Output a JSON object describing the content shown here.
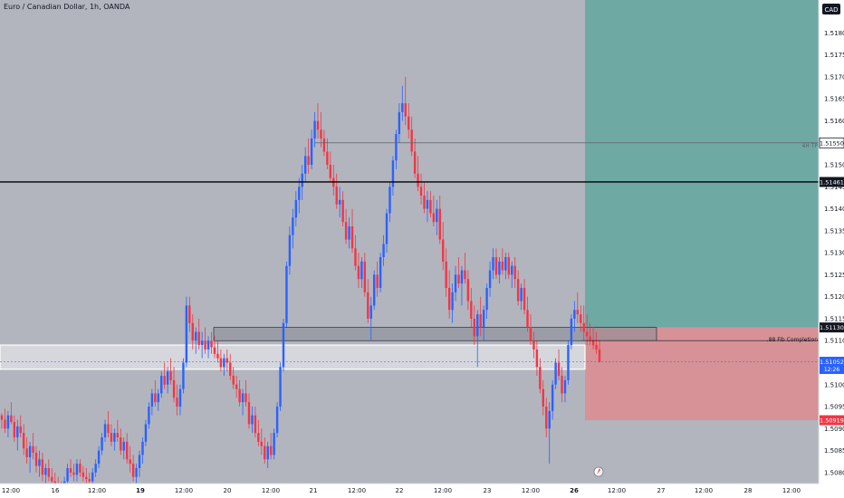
{
  "header": {
    "symbol_title": "Euro / Canadian Dollar, 1h, OANDA"
  },
  "currency_badge": "CAD",
  "colors": {
    "background": "#b2b5be",
    "bull": "#2962ff",
    "bear": "#f23645",
    "target_zone": "#6fa9a4",
    "stop_zone": "#d69296",
    "axis_bg": "#ffffff",
    "price_tag_dark": "#131722",
    "price_tag_blue": "#2962ff",
    "price_tag_red": "#f23645"
  },
  "annotations": {
    "tp_label": "4H TP",
    "fib_label": ".88 Fib Completion",
    "wick_icon": "time-marker-icon"
  },
  "price_tags": {
    "tp": "1.51550",
    "black_line": "1.51461",
    "entry": "1.51130",
    "current_price": "1.51052",
    "countdown": "12:26",
    "stop": "1.50919"
  },
  "chart_data": {
    "type": "candlestick",
    "title": "Euro / Canadian Dollar, 1h, OANDA",
    "ylim": [
      1.50775,
      1.51875
    ],
    "y_ticks": [
      "1.51800",
      "1.51750",
      "1.51700",
      "1.51650",
      "1.51600",
      "1.51550",
      "1.51500",
      "1.51450",
      "1.51400",
      "1.51350",
      "1.51300",
      "1.51250",
      "1.51200",
      "1.51150",
      "1.51100",
      "1.51050",
      "1.51000",
      "1.50950",
      "1.50900",
      "1.50850",
      "1.50800"
    ],
    "x_ticks": [
      {
        "label": "12:00",
        "bold": false
      },
      {
        "label": "16",
        "bold": false
      },
      {
        "label": "12:00",
        "bold": false
      },
      {
        "label": "19",
        "bold": true
      },
      {
        "label": "12:00",
        "bold": false
      },
      {
        "label": "20",
        "bold": false
      },
      {
        "label": "12:00",
        "bold": false
      },
      {
        "label": "21",
        "bold": false
      },
      {
        "label": "12:00",
        "bold": false
      },
      {
        "label": "22",
        "bold": false
      },
      {
        "label": "12:00",
        "bold": false
      },
      {
        "label": "23",
        "bold": false
      },
      {
        "label": "12:00",
        "bold": false
      },
      {
        "label": "26",
        "bold": true
      },
      {
        "label": "12:00",
        "bold": false
      },
      {
        "label": "27",
        "bold": false
      },
      {
        "label": "12:00",
        "bold": false
      },
      {
        "label": "28",
        "bold": false
      },
      {
        "label": "12:00",
        "bold": false
      }
    ],
    "levels": {
      "horizontal_black": 1.51461,
      "tp_line": 1.5155,
      "entry": 1.5113,
      "stop": 1.50919,
      "fib": 1.511,
      "current": 1.51052
    },
    "zones": {
      "demand_zone": [
        1.511,
        1.5113
      ],
      "white_zone": [
        1.51035,
        1.5109
      ]
    },
    "candles": [
      [
        1.5093,
        1.50935,
        1.509,
        1.5092
      ],
      [
        1.5092,
        1.50945,
        1.5089,
        1.509
      ],
      [
        1.509,
        1.5094,
        1.5088,
        1.5093
      ],
      [
        1.5093,
        1.5096,
        1.5091,
        1.50915
      ],
      [
        1.50915,
        1.5093,
        1.5087,
        1.5088
      ],
      [
        1.5088,
        1.5092,
        1.5085,
        1.50905
      ],
      [
        1.50905,
        1.5093,
        1.5088,
        1.5089
      ],
      [
        1.5089,
        1.5091,
        1.5084,
        1.50855
      ],
      [
        1.50855,
        1.5088,
        1.5082,
        1.50835
      ],
      [
        1.50835,
        1.5087,
        1.508,
        1.5086
      ],
      [
        1.5086,
        1.5089,
        1.5083,
        1.50845
      ],
      [
        1.50845,
        1.5086,
        1.508,
        1.50815
      ],
      [
        1.50815,
        1.5085,
        1.5079,
        1.5083
      ],
      [
        1.5083,
        1.50845,
        1.5078,
        1.50795
      ],
      [
        1.50795,
        1.5082,
        1.5077,
        1.5081
      ],
      [
        1.5081,
        1.5083,
        1.5078,
        1.5079
      ],
      [
        1.5079,
        1.5081,
        1.5076,
        1.5078
      ],
      [
        1.5078,
        1.508,
        1.5075,
        1.5077
      ],
      [
        1.5077,
        1.5079,
        1.5074,
        1.5076
      ],
      [
        1.5076,
        1.5078,
        1.5073,
        1.5075
      ],
      [
        1.5075,
        1.5079,
        1.5074,
        1.5078
      ],
      [
        1.5078,
        1.5082,
        1.5077,
        1.5081
      ],
      [
        1.5081,
        1.5083,
        1.5079,
        1.508
      ],
      [
        1.508,
        1.5082,
        1.5078,
        1.50795
      ],
      [
        1.50795,
        1.5083,
        1.5078,
        1.5082
      ],
      [
        1.5082,
        1.5083,
        1.5079,
        1.508
      ],
      [
        1.508,
        1.50815,
        1.5078,
        1.5079
      ],
      [
        1.5079,
        1.5081,
        1.5077,
        1.50785
      ],
      [
        1.50785,
        1.508,
        1.50765,
        1.5078
      ],
      [
        1.5078,
        1.5081,
        1.5077,
        1.508
      ],
      [
        1.508,
        1.5083,
        1.5079,
        1.5082
      ],
      [
        1.5082,
        1.5086,
        1.5081,
        1.5085
      ],
      [
        1.5085,
        1.5089,
        1.5084,
        1.5088
      ],
      [
        1.5088,
        1.5092,
        1.5087,
        1.5091
      ],
      [
        1.5091,
        1.5094,
        1.5088,
        1.5089
      ],
      [
        1.5089,
        1.5091,
        1.5086,
        1.5087
      ],
      [
        1.5087,
        1.509,
        1.5085,
        1.5089
      ],
      [
        1.5089,
        1.5092,
        1.5087,
        1.5088
      ],
      [
        1.5088,
        1.509,
        1.5084,
        1.5085
      ],
      [
        1.5085,
        1.5088,
        1.5083,
        1.5087
      ],
      [
        1.5087,
        1.5089,
        1.5082,
        1.5083
      ],
      [
        1.5083,
        1.5086,
        1.508,
        1.5082
      ],
      [
        1.5082,
        1.5084,
        1.5078,
        1.5079
      ],
      [
        1.5079,
        1.5082,
        1.5077,
        1.5081
      ],
      [
        1.5081,
        1.5085,
        1.5079,
        1.5084
      ],
      [
        1.5084,
        1.5088,
        1.5082,
        1.5087
      ],
      [
        1.5087,
        1.5092,
        1.5086,
        1.5091
      ],
      [
        1.5091,
        1.5096,
        1.509,
        1.5095
      ],
      [
        1.5095,
        1.5099,
        1.5093,
        1.5098
      ],
      [
        1.5098,
        1.5101,
        1.5095,
        1.5096
      ],
      [
        1.5096,
        1.5099,
        1.5094,
        1.5098
      ],
      [
        1.5098,
        1.5103,
        1.5097,
        1.5102
      ],
      [
        1.5102,
        1.5105,
        1.5099,
        1.51
      ],
      [
        1.51,
        1.5104,
        1.5098,
        1.5103
      ],
      [
        1.5103,
        1.5106,
        1.51,
        1.5101
      ],
      [
        1.5101,
        1.5104,
        1.5096,
        1.5097
      ],
      [
        1.5097,
        1.51,
        1.5093,
        1.5095
      ],
      [
        1.5095,
        1.51,
        1.5093,
        1.5099
      ],
      [
        1.5099,
        1.5106,
        1.5098,
        1.5105
      ],
      [
        1.5105,
        1.512,
        1.5104,
        1.5118
      ],
      [
        1.5118,
        1.512,
        1.5112,
        1.5114
      ],
      [
        1.5114,
        1.5116,
        1.5108,
        1.511
      ],
      [
        1.511,
        1.5113,
        1.5107,
        1.5112
      ],
      [
        1.5112,
        1.5115,
        1.5108,
        1.5109
      ],
      [
        1.5109,
        1.5112,
        1.5106,
        1.511
      ],
      [
        1.511,
        1.5113,
        1.5107,
        1.5108
      ],
      [
        1.5108,
        1.5111,
        1.5106,
        1.511
      ],
      [
        1.511,
        1.5112,
        1.5107,
        1.51085
      ],
      [
        1.51085,
        1.5111,
        1.5106,
        1.5107
      ],
      [
        1.5107,
        1.511,
        1.5105,
        1.5106
      ],
      [
        1.5106,
        1.5108,
        1.5103,
        1.5104
      ],
      [
        1.5104,
        1.5107,
        1.5102,
        1.5106
      ],
      [
        1.5106,
        1.5108,
        1.5103,
        1.5105
      ],
      [
        1.5105,
        1.5107,
        1.5101,
        1.5102
      ],
      [
        1.5102,
        1.5104,
        1.5099,
        1.51
      ],
      [
        1.51,
        1.5102,
        1.5097,
        1.5099
      ],
      [
        1.5099,
        1.5101,
        1.5095,
        1.5096
      ],
      [
        1.5096,
        1.5099,
        1.5093,
        1.5098
      ],
      [
        1.5098,
        1.5101,
        1.5095,
        1.5096
      ],
      [
        1.5096,
        1.5098,
        1.509,
        1.5091
      ],
      [
        1.5091,
        1.5095,
        1.5089,
        1.5093
      ],
      [
        1.5093,
        1.5095,
        1.5088,
        1.5089
      ],
      [
        1.5089,
        1.5092,
        1.5086,
        1.5087
      ],
      [
        1.5087,
        1.509,
        1.5084,
        1.5086
      ],
      [
        1.5086,
        1.5088,
        1.5082,
        1.5083
      ],
      [
        1.5083,
        1.5087,
        1.5081,
        1.5086
      ],
      [
        1.5086,
        1.5089,
        1.5083,
        1.5084
      ],
      [
        1.5084,
        1.509,
        1.5083,
        1.5089
      ],
      [
        1.5089,
        1.5096,
        1.5088,
        1.5095
      ],
      [
        1.5095,
        1.5105,
        1.5094,
        1.5104
      ],
      [
        1.5104,
        1.5115,
        1.5103,
        1.5114
      ],
      [
        1.5114,
        1.5128,
        1.5113,
        1.5127
      ],
      [
        1.5127,
        1.5136,
        1.5125,
        1.5134
      ],
      [
        1.5134,
        1.514,
        1.5131,
        1.5138
      ],
      [
        1.5138,
        1.5144,
        1.5136,
        1.5142
      ],
      [
        1.5142,
        1.5147,
        1.5139,
        1.5145
      ],
      [
        1.5145,
        1.515,
        1.5142,
        1.5148
      ],
      [
        1.5148,
        1.5154,
        1.5146,
        1.5152
      ],
      [
        1.5152,
        1.5156,
        1.5148,
        1.515
      ],
      [
        1.515,
        1.5158,
        1.5149,
        1.5156
      ],
      [
        1.5156,
        1.5162,
        1.5154,
        1.516
      ],
      [
        1.516,
        1.5164,
        1.5156,
        1.5158
      ],
      [
        1.5158,
        1.5162,
        1.5154,
        1.5156
      ],
      [
        1.5156,
        1.5158,
        1.5152,
        1.5153
      ],
      [
        1.5153,
        1.5156,
        1.5149,
        1.515
      ],
      [
        1.515,
        1.5153,
        1.5146,
        1.5147
      ],
      [
        1.5147,
        1.515,
        1.5143,
        1.5145
      ],
      [
        1.5145,
        1.5148,
        1.514,
        1.5141
      ],
      [
        1.5141,
        1.5145,
        1.5138,
        1.5142
      ],
      [
        1.5142,
        1.5144,
        1.5136,
        1.5137
      ],
      [
        1.5137,
        1.514,
        1.5132,
        1.5133
      ],
      [
        1.5133,
        1.5138,
        1.5131,
        1.5136
      ],
      [
        1.5136,
        1.514,
        1.513,
        1.5131
      ],
      [
        1.5131,
        1.5134,
        1.5126,
        1.5127
      ],
      [
        1.5127,
        1.513,
        1.5122,
        1.5124
      ],
      [
        1.5124,
        1.5129,
        1.5122,
        1.5128
      ],
      [
        1.5128,
        1.513,
        1.512,
        1.5121
      ],
      [
        1.5121,
        1.5124,
        1.5114,
        1.5115
      ],
      [
        1.5115,
        1.512,
        1.511,
        1.5118
      ],
      [
        1.5118,
        1.5126,
        1.5117,
        1.5125
      ],
      [
        1.5125,
        1.5128,
        1.512,
        1.5122
      ],
      [
        1.5122,
        1.513,
        1.5121,
        1.5129
      ],
      [
        1.5129,
        1.5134,
        1.5127,
        1.5132
      ],
      [
        1.5132,
        1.514,
        1.513,
        1.5139
      ],
      [
        1.5139,
        1.5146,
        1.5137,
        1.5145
      ],
      [
        1.5145,
        1.5152,
        1.5143,
        1.5151
      ],
      [
        1.5151,
        1.5158,
        1.5149,
        1.5157
      ],
      [
        1.5157,
        1.5164,
        1.5155,
        1.5162
      ],
      [
        1.5162,
        1.5168,
        1.516,
        1.5164
      ],
      [
        1.5164,
        1.517,
        1.5159,
        1.5161
      ],
      [
        1.5161,
        1.5164,
        1.5156,
        1.5158
      ],
      [
        1.5158,
        1.5161,
        1.5152,
        1.5153
      ],
      [
        1.5153,
        1.5156,
        1.5147,
        1.5148
      ],
      [
        1.5148,
        1.5152,
        1.5144,
        1.5145
      ],
      [
        1.5145,
        1.5148,
        1.5141,
        1.5143
      ],
      [
        1.5143,
        1.5146,
        1.5139,
        1.514
      ],
      [
        1.514,
        1.5144,
        1.5137,
        1.5142
      ],
      [
        1.5142,
        1.5144,
        1.5138,
        1.5139
      ],
      [
        1.5139,
        1.5143,
        1.5136,
        1.5137
      ],
      [
        1.5137,
        1.5142,
        1.5134,
        1.514
      ],
      [
        1.514,
        1.5143,
        1.5132,
        1.5133
      ],
      [
        1.5133,
        1.5137,
        1.5126,
        1.5128
      ],
      [
        1.5128,
        1.5131,
        1.512,
        1.5122
      ],
      [
        1.5122,
        1.5126,
        1.5115,
        1.5117
      ],
      [
        1.5117,
        1.5123,
        1.5114,
        1.5121
      ],
      [
        1.5121,
        1.5127,
        1.5119,
        1.5125
      ],
      [
        1.5125,
        1.5129,
        1.5122,
        1.5123
      ],
      [
        1.5123,
        1.5127,
        1.5118,
        1.5126
      ],
      [
        1.5126,
        1.513,
        1.5123,
        1.5124
      ],
      [
        1.5124,
        1.5126,
        1.5117,
        1.5119
      ],
      [
        1.5119,
        1.5122,
        1.5113,
        1.5115
      ],
      [
        1.5115,
        1.5118,
        1.5109,
        1.5111
      ],
      [
        1.5111,
        1.5117,
        1.5104,
        1.5116
      ],
      [
        1.5116,
        1.512,
        1.5111,
        1.5113
      ],
      [
        1.5113,
        1.5118,
        1.511,
        1.5117
      ],
      [
        1.5117,
        1.5123,
        1.5115,
        1.5122
      ],
      [
        1.5122,
        1.5128,
        1.512,
        1.5126
      ],
      [
        1.5126,
        1.5131,
        1.5124,
        1.5129
      ],
      [
        1.5129,
        1.5131,
        1.5124,
        1.5125
      ],
      [
        1.5125,
        1.5129,
        1.5123,
        1.5128
      ],
      [
        1.5128,
        1.5131,
        1.5125,
        1.5126
      ],
      [
        1.5126,
        1.513,
        1.5124,
        1.5129
      ],
      [
        1.5129,
        1.513,
        1.5124,
        1.5125
      ],
      [
        1.5125,
        1.5128,
        1.5122,
        1.5127
      ],
      [
        1.5127,
        1.5129,
        1.5122,
        1.5124
      ],
      [
        1.5124,
        1.5126,
        1.5118,
        1.5119
      ],
      [
        1.5119,
        1.5123,
        1.5117,
        1.5122
      ],
      [
        1.5122,
        1.5124,
        1.5116,
        1.5117
      ],
      [
        1.5117,
        1.512,
        1.5112,
        1.5113
      ],
      [
        1.5113,
        1.5116,
        1.5109,
        1.511
      ],
      [
        1.511,
        1.5112,
        1.5106,
        1.5108
      ],
      [
        1.5108,
        1.511,
        1.5102,
        1.5104
      ],
      [
        1.5104,
        1.5106,
        1.5098,
        1.5099
      ],
      [
        1.5099,
        1.5101,
        1.5093,
        1.5095
      ],
      [
        1.5095,
        1.5097,
        1.5088,
        1.509
      ],
      [
        1.509,
        1.5096,
        1.5082,
        1.5094
      ],
      [
        1.5094,
        1.5101,
        1.5092,
        1.51
      ],
      [
        1.51,
        1.5106,
        1.5099,
        1.5105
      ],
      [
        1.5105,
        1.5108,
        1.5101,
        1.5102
      ],
      [
        1.5102,
        1.5104,
        1.5096,
        1.5098
      ],
      [
        1.5098,
        1.5102,
        1.5096,
        1.5101
      ],
      [
        1.5101,
        1.511,
        1.51,
        1.5109
      ],
      [
        1.5109,
        1.5116,
        1.5108,
        1.5115
      ],
      [
        1.5115,
        1.5119,
        1.5112,
        1.5117
      ],
      [
        1.5117,
        1.5121,
        1.5114,
        1.5116
      ],
      [
        1.5116,
        1.5118,
        1.5112,
        1.5114
      ],
      [
        1.5114,
        1.5118,
        1.511,
        1.5112
      ],
      [
        1.5112,
        1.5116,
        1.5109,
        1.5111
      ],
      [
        1.5111,
        1.5114,
        1.5109,
        1.511
      ],
      [
        1.511,
        1.5113,
        1.5108,
        1.5109
      ],
      [
        1.5109,
        1.5112,
        1.5107,
        1.5108
      ],
      [
        1.5108,
        1.511,
        1.5105,
        1.51052
      ]
    ]
  }
}
